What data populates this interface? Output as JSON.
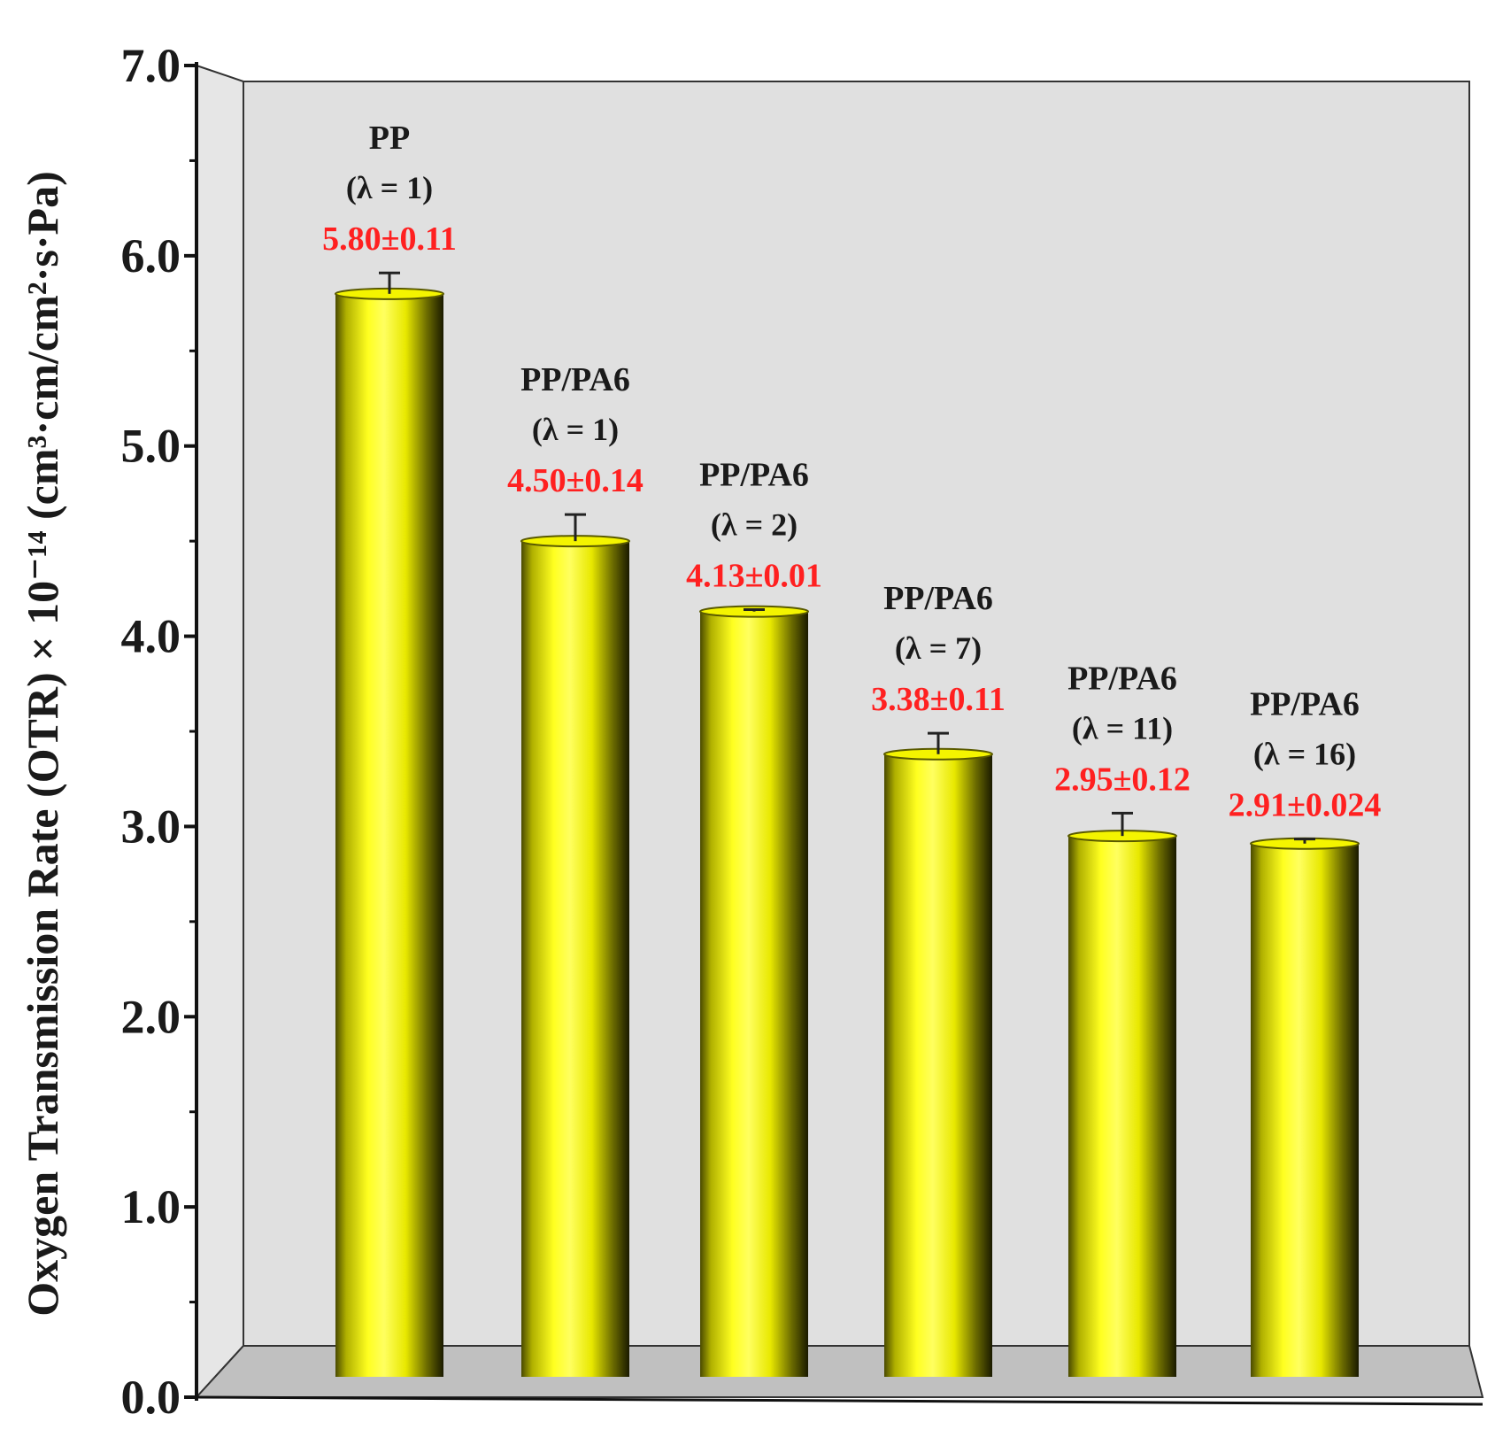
{
  "chart_data": {
    "type": "bar",
    "title": "",
    "xlabel": "",
    "ylabel": "Oxygen Transmission Rate (OTR) × 10⁻¹⁴ (cm³·cm/cm²·s·Pa)",
    "ylim": [
      0,
      7
    ],
    "yticks": [
      "0.0",
      "1.0",
      "2.0",
      "3.0",
      "4.0",
      "5.0",
      "6.0",
      "7.0"
    ],
    "grid": false,
    "legend": "none",
    "categories": [
      {
        "name": "PP",
        "lambda": "(λ = 1)"
      },
      {
        "name": "PP/PA6",
        "lambda": "(λ = 1)"
      },
      {
        "name": "PP/PA6",
        "lambda": "(λ = 2)"
      },
      {
        "name": "PP/PA6",
        "lambda": "(λ = 7)"
      },
      {
        "name": "PP/PA6",
        "lambda": "(λ = 11)"
      },
      {
        "name": "PP/PA6",
        "lambda": "(λ = 16)"
      }
    ],
    "values": [
      5.8,
      4.5,
      4.13,
      3.38,
      2.95,
      2.91
    ],
    "errors": [
      0.11,
      0.14,
      0.01,
      0.11,
      0.12,
      0.024
    ],
    "value_labels": [
      "5.80±0.11",
      "4.50±0.14",
      "4.13±0.01",
      "3.38±0.11",
      "2.95±0.12",
      "2.91±0.024"
    ],
    "colors": {
      "bar": "#ffff00",
      "bar_shade": "#2a2a00",
      "value_label": "#ff2020",
      "wall": "#e0e0e0",
      "floor": "#c0c0c0"
    }
  }
}
